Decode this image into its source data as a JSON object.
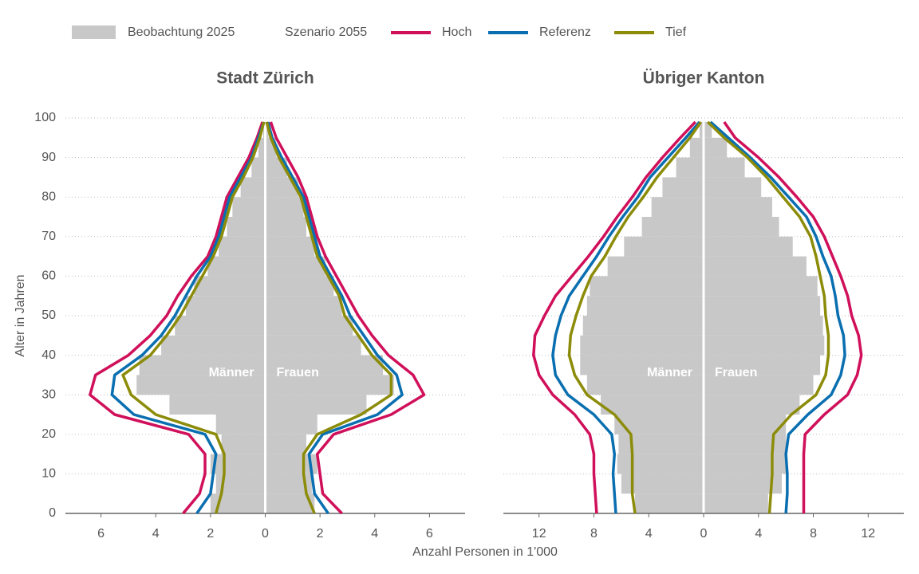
{
  "legend_scenario": "Szenario 2055",
  "chart_data": [
    {
      "type": "pyramid",
      "title": "Stadt Zürich",
      "ylabel": "Alter in Jahren",
      "xlabel": "Anzahl Personen in 1'000",
      "sex_labels": [
        "Männer",
        "Frauen"
      ],
      "ages": [
        0,
        5,
        10,
        15,
        20,
        25,
        30,
        35,
        40,
        45,
        50,
        55,
        60,
        65,
        70,
        75,
        80,
        85,
        90,
        95,
        99
      ],
      "ylim": [
        0,
        100
      ],
      "yticks": [
        0,
        10,
        20,
        30,
        40,
        50,
        60,
        70,
        80,
        90,
        100
      ],
      "xlim": [
        -7.3,
        7.3
      ],
      "xticks": [
        {
          "value": -6,
          "label": "6"
        },
        {
          "value": -4,
          "label": "4"
        },
        {
          "value": -2,
          "label": "2"
        },
        0,
        2,
        4,
        6
      ],
      "observation": {
        "name": "Beobachtung 2025",
        "color": "#c8c8c8",
        "men": [
          2.0,
          1.8,
          2.0,
          1.6,
          1.8,
          3.5,
          4.7,
          4.6,
          3.8,
          3.3,
          2.9,
          2.6,
          2.1,
          1.7,
          1.4,
          1.2,
          0.9,
          0.5,
          0.25,
          0.08,
          0.01
        ],
        "women": [
          1.8,
          1.7,
          1.9,
          1.5,
          1.9,
          3.7,
          4.7,
          4.3,
          3.5,
          3.2,
          2.8,
          2.5,
          2.2,
          1.8,
          1.5,
          1.4,
          1.2,
          0.8,
          0.4,
          0.12,
          0.02
        ]
      },
      "series": [
        {
          "name": "Hoch",
          "color": "#d0105a",
          "men": [
            3.0,
            2.4,
            2.2,
            2.2,
            2.8,
            5.5,
            6.4,
            6.2,
            5.0,
            4.2,
            3.6,
            3.2,
            2.7,
            2.1,
            1.8,
            1.6,
            1.4,
            1.0,
            0.6,
            0.3,
            0.1
          ],
          "women": [
            2.8,
            2.1,
            2.0,
            1.9,
            2.5,
            4.6,
            5.8,
            5.4,
            4.5,
            3.9,
            3.4,
            3.0,
            2.6,
            2.2,
            1.9,
            1.7,
            1.5,
            1.2,
            0.8,
            0.4,
            0.2
          ]
        },
        {
          "name": "Referenz",
          "color": "#0a6fb0",
          "men": [
            2.5,
            2.0,
            1.9,
            1.8,
            2.2,
            4.8,
            5.6,
            5.5,
            4.5,
            3.8,
            3.3,
            2.9,
            2.5,
            2.0,
            1.7,
            1.5,
            1.3,
            0.9,
            0.5,
            0.25,
            0.05
          ],
          "women": [
            2.3,
            1.8,
            1.7,
            1.6,
            2.1,
            4.1,
            5.0,
            4.8,
            4.1,
            3.6,
            3.1,
            2.8,
            2.4,
            2.0,
            1.8,
            1.6,
            1.4,
            1.0,
            0.6,
            0.25,
            0.1
          ]
        },
        {
          "name": "Tief",
          "color": "#8c8c0a",
          "men": [
            1.8,
            1.6,
            1.5,
            1.5,
            1.8,
            4.0,
            4.9,
            5.2,
            4.2,
            3.6,
            3.1,
            2.7,
            2.3,
            1.9,
            1.6,
            1.4,
            1.2,
            0.8,
            0.45,
            0.2,
            0.05
          ],
          "women": [
            1.8,
            1.5,
            1.4,
            1.4,
            1.9,
            3.5,
            4.6,
            4.6,
            3.9,
            3.4,
            2.9,
            2.7,
            2.3,
            1.9,
            1.7,
            1.5,
            1.3,
            0.9,
            0.5,
            0.2,
            0.05
          ]
        }
      ]
    },
    {
      "type": "pyramid",
      "title": "Übriger Kanton",
      "sex_labels": [
        "Männer",
        "Frauen"
      ],
      "ages": [
        0,
        5,
        10,
        15,
        20,
        25,
        30,
        35,
        40,
        45,
        50,
        55,
        60,
        65,
        70,
        75,
        80,
        85,
        90,
        95,
        99
      ],
      "ylim": [
        0,
        100
      ],
      "yticks": [
        0,
        10,
        20,
        30,
        40,
        50,
        60,
        70,
        80,
        90,
        100
      ],
      "xlim": [
        -14.6,
        14.6
      ],
      "xticks": [
        {
          "value": -12,
          "label": "12"
        },
        {
          "value": -8,
          "label": "8"
        },
        {
          "value": -4,
          "label": "4"
        },
        0,
        4,
        8,
        12
      ],
      "observation": {
        "name": "Beobachtung 2025",
        "color": "#c8c8c8",
        "men": [
          5.0,
          6.0,
          6.3,
          6.2,
          6.5,
          7.5,
          8.5,
          9.0,
          9.0,
          8.8,
          8.5,
          8.3,
          7.0,
          5.8,
          4.5,
          3.8,
          3.0,
          2.0,
          1.0,
          0.3,
          0.05
        ],
        "women": [
          4.7,
          5.7,
          6.0,
          6.0,
          6.0,
          7.0,
          8.0,
          8.5,
          8.8,
          8.7,
          8.5,
          8.3,
          7.5,
          6.5,
          5.5,
          5.0,
          4.2,
          3.0,
          1.7,
          0.6,
          0.1
        ]
      },
      "series": [
        {
          "name": "Hoch",
          "color": "#d0105a",
          "men": [
            7.8,
            7.9,
            8.0,
            8.0,
            8.3,
            9.4,
            11.0,
            12.0,
            12.4,
            12.3,
            11.6,
            10.8,
            9.6,
            8.4,
            7.3,
            6.3,
            5.2,
            4.2,
            3.0,
            1.7,
            0.6
          ],
          "women": [
            7.3,
            7.3,
            7.3,
            7.3,
            7.4,
            8.8,
            10.5,
            11.2,
            11.5,
            11.3,
            10.8,
            10.5,
            10.0,
            9.4,
            8.8,
            8.0,
            6.8,
            5.5,
            4.0,
            2.3,
            1.5
          ]
        },
        {
          "name": "Referenz",
          "color": "#0a6fb0",
          "men": [
            6.4,
            6.5,
            6.6,
            6.5,
            6.7,
            8.0,
            9.9,
            10.8,
            11.0,
            10.8,
            10.4,
            9.8,
            8.8,
            7.8,
            6.9,
            5.9,
            4.8,
            3.9,
            2.6,
            1.3,
            0.3
          ],
          "women": [
            6.0,
            6.1,
            6.1,
            6.0,
            6.2,
            7.6,
            9.3,
            10.0,
            10.3,
            10.2,
            9.8,
            9.6,
            9.3,
            8.7,
            8.2,
            7.5,
            6.2,
            4.9,
            3.4,
            1.8,
            0.5
          ]
        },
        {
          "name": "Tief",
          "color": "#8c8c0a",
          "men": [
            5.0,
            5.2,
            5.2,
            5.2,
            5.3,
            6.5,
            8.5,
            9.4,
            9.8,
            9.7,
            9.3,
            8.8,
            8.2,
            7.2,
            6.4,
            5.5,
            4.4,
            3.4,
            2.2,
            1.0,
            0.2
          ],
          "women": [
            4.8,
            4.9,
            5.0,
            5.0,
            5.1,
            6.4,
            8.2,
            8.9,
            9.1,
            9.1,
            8.9,
            8.8,
            8.5,
            8.2,
            7.8,
            7.0,
            5.8,
            4.6,
            3.2,
            1.5,
            0.3
          ]
        }
      ]
    }
  ]
}
